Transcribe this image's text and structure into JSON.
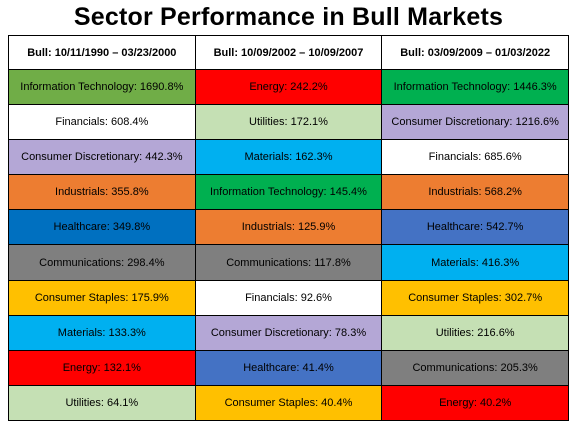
{
  "chart_data": {
    "type": "table",
    "title": "Sector Performance in Bull Markets",
    "columns": [
      "Bull: 10/11/1990 – 03/23/2000",
      "Bull: 10/09/2002 – 10/09/2007",
      "Bull: 03/09/2009 – 01/03/2022"
    ],
    "rows": [
      [
        {
          "text": "Information Technology: 1690.8%",
          "sector": "Information Technology",
          "value": 1690.8,
          "color": "#70AD47"
        },
        {
          "text": "Energy: 242.2%",
          "sector": "Energy",
          "value": 242.2,
          "color": "#FF0000"
        },
        {
          "text": "Information Technology: 1446.3%",
          "sector": "Information Technology",
          "value": 1446.3,
          "color": "#00B050"
        }
      ],
      [
        {
          "text": "Financials: 608.4%",
          "sector": "Financials",
          "value": 608.4,
          "color": "#FFFFFF"
        },
        {
          "text": "Utilities: 172.1%",
          "sector": "Utilities",
          "value": 172.1,
          "color": "#C5E0B4"
        },
        {
          "text": "Consumer Discretionary: 1216.6%",
          "sector": "Consumer Discretionary",
          "value": 1216.6,
          "color": "#B4A7D6"
        }
      ],
      [
        {
          "text": "Consumer Discretionary: 442.3%",
          "sector": "Consumer Discretionary",
          "value": 442.3,
          "color": "#B4A7D6"
        },
        {
          "text": "Materials: 162.3%",
          "sector": "Materials",
          "value": 162.3,
          "color": "#00B0F0"
        },
        {
          "text": "Financials: 685.6%",
          "sector": "Financials",
          "value": 685.6,
          "color": "#FFFFFF"
        }
      ],
      [
        {
          "text": "Industrials: 355.8%",
          "sector": "Industrials",
          "value": 355.8,
          "color": "#ED7D31"
        },
        {
          "text": "Information Technology: 145.4%",
          "sector": "Information Technology",
          "value": 145.4,
          "color": "#00B050"
        },
        {
          "text": "Industrials: 568.2%",
          "sector": "Industrials",
          "value": 568.2,
          "color": "#ED7D31"
        }
      ],
      [
        {
          "text": "Healthcare: 349.8%",
          "sector": "Healthcare",
          "value": 349.8,
          "color": "#0070C0"
        },
        {
          "text": "Industrials: 125.9%",
          "sector": "Industrials",
          "value": 125.9,
          "color": "#ED7D31"
        },
        {
          "text": "Healthcare: 542.7%",
          "sector": "Healthcare",
          "value": 542.7,
          "color": "#4472C4"
        }
      ],
      [
        {
          "text": "Communications: 298.4%",
          "sector": "Communications",
          "value": 298.4,
          "color": "#7F7F7F"
        },
        {
          "text": "Communications: 117.8%",
          "sector": "Communications",
          "value": 117.8,
          "color": "#7F7F7F"
        },
        {
          "text": "Materials: 416.3%",
          "sector": "Materials",
          "value": 416.3,
          "color": "#00B0F0"
        }
      ],
      [
        {
          "text": "Consumer Staples: 175.9%",
          "sector": "Consumer Staples",
          "value": 175.9,
          "color": "#FFC000"
        },
        {
          "text": "Financials: 92.6%",
          "sector": "Financials",
          "value": 92.6,
          "color": "#FFFFFF"
        },
        {
          "text": "Consumer Staples: 302.7%",
          "sector": "Consumer Staples",
          "value": 302.7,
          "color": "#FFC000"
        }
      ],
      [
        {
          "text": "Materials: 133.3%",
          "sector": "Materials",
          "value": 133.3,
          "color": "#00B0F0"
        },
        {
          "text": "Consumer Discretionary: 78.3%",
          "sector": "Consumer Discretionary",
          "value": 78.3,
          "color": "#B4A7D6"
        },
        {
          "text": "Utilities: 216.6%",
          "sector": "Utilities",
          "value": 216.6,
          "color": "#C5E0B4"
        }
      ],
      [
        {
          "text": "Energy: 132.1%",
          "sector": "Energy",
          "value": 132.1,
          "color": "#FF0000"
        },
        {
          "text": "Healthcare: 41.4%",
          "sector": "Healthcare",
          "value": 41.4,
          "color": "#4472C4"
        },
        {
          "text": "Communications: 205.3%",
          "sector": "Communications",
          "value": 205.3,
          "color": "#7F7F7F"
        }
      ],
      [
        {
          "text": "Utilities: 64.1%",
          "sector": "Utilities",
          "value": 64.1,
          "color": "#C5E0B4"
        },
        {
          "text": "Consumer Staples: 40.4%",
          "sector": "Consumer Staples",
          "value": 40.4,
          "color": "#FFC000"
        },
        {
          "text": "Energy: 40.2%",
          "sector": "Energy",
          "value": 40.2,
          "color": "#FF0000"
        }
      ]
    ]
  }
}
